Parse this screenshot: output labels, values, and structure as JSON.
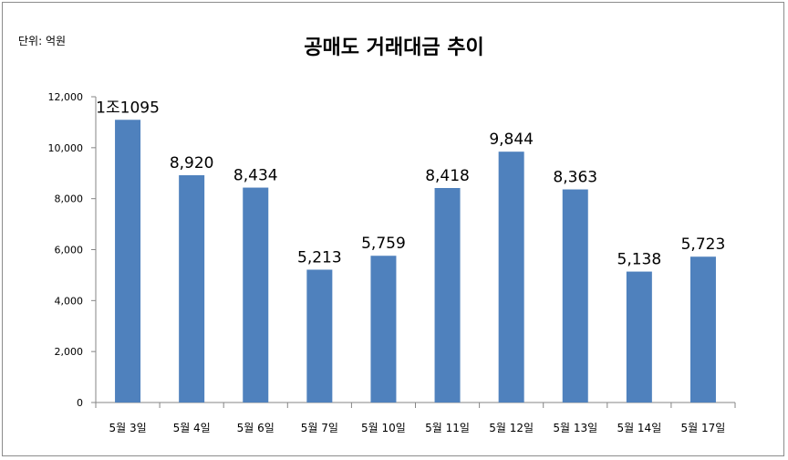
{
  "chart_data": {
    "type": "bar",
    "title": "공매도 거래대금 추이",
    "unit_label": "단위: 억원",
    "categories": [
      "5월 3일",
      "5월 4일",
      "5월 6일",
      "5월 7일",
      "5월 10일",
      "5월 11일",
      "5월 12일",
      "5월 13일",
      "5월 14일",
      "5월 17일"
    ],
    "values": [
      11095,
      8920,
      8434,
      5213,
      5759,
      8418,
      9844,
      8363,
      5138,
      5723
    ],
    "data_labels": [
      "1조1095",
      "8,920",
      "8,434",
      "5,213",
      "5,759",
      "8,418",
      "9,844",
      "8,363",
      "5,138",
      "5,723"
    ],
    "yticks": [
      "0",
      "2,000",
      "4,000",
      "6,000",
      "8,000",
      "10,000",
      "12,000"
    ],
    "ylim": [
      0,
      12000
    ],
    "grid": false,
    "legend": "none",
    "bar_color": "#4f81bd"
  }
}
